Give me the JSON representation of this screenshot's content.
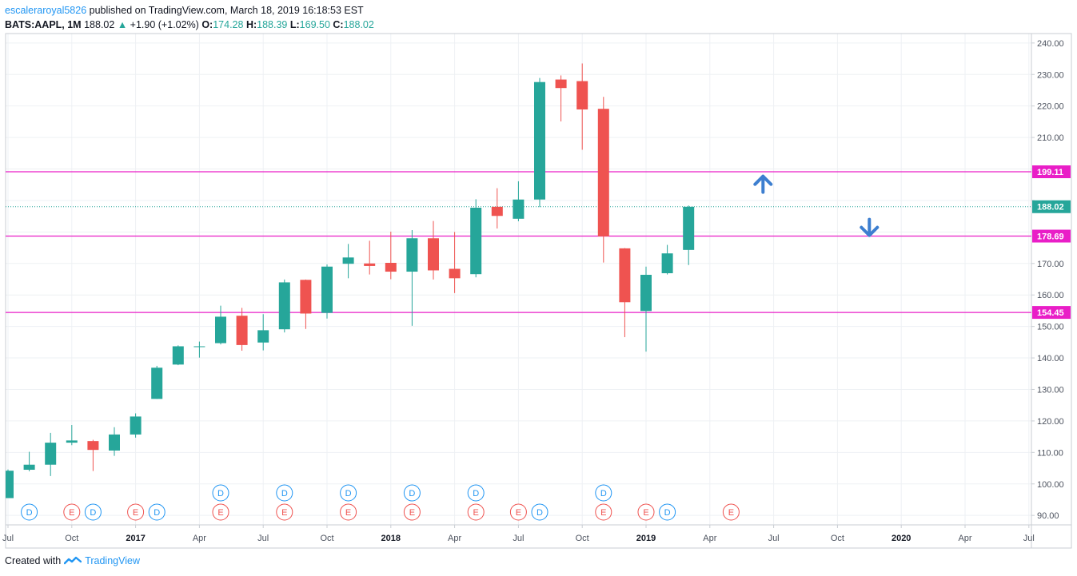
{
  "header": {
    "author": "escaleraroyal5826",
    "published_text": "published on TradingView.com, March 18, 2019 16:18:53 EST",
    "symbol": "BATS:AAPL, 1M",
    "last": "188.02",
    "change_arrow": "▲",
    "change": "+1.90 (+1.02%)",
    "o_label": "O:",
    "o_value": "174.28",
    "h_label": "H:",
    "h_value": "188.39",
    "l_label": "L:",
    "l_value": "169.50",
    "c_label": "C:",
    "c_value": "188.02"
  },
  "footer": {
    "created_with": "Created with",
    "brand": "TradingView",
    "logo_icon": "tradingview-cloud-icon"
  },
  "colors": {
    "up": "#26a69a",
    "down": "#ef5350",
    "level_line": "#e91ec7",
    "last_price": "#26a69a",
    "arrow": "#3d7fd0",
    "dividend": "#2196f3",
    "earnings": "#ef5350",
    "grid": "#eef1f4"
  },
  "chart_data": {
    "type": "candlestick",
    "timeframe": "1M",
    "symbol": "BATS:AAPL",
    "ylim": [
      87,
      243
    ],
    "y_ticks": [
      90,
      100,
      110,
      120,
      130,
      140,
      150,
      160,
      170,
      180,
      190,
      200,
      210,
      220,
      230,
      240
    ],
    "y_tick_labels": [
      "90.00",
      "100.00",
      "110.00",
      "120.00",
      "130.00",
      "140.00",
      "150.00",
      "160.00",
      "170.00",
      "",
      "",
      "",
      "210.00",
      "220.00",
      "230.00",
      "240.00"
    ],
    "x_ticks": [
      {
        "label": "Jul",
        "month_index": 0,
        "bold": false
      },
      {
        "label": "Oct",
        "month_index": 3,
        "bold": false
      },
      {
        "label": "2017",
        "month_index": 6,
        "bold": true
      },
      {
        "label": "Apr",
        "month_index": 9,
        "bold": false
      },
      {
        "label": "Jul",
        "month_index": 12,
        "bold": false
      },
      {
        "label": "Oct",
        "month_index": 15,
        "bold": false
      },
      {
        "label": "2018",
        "month_index": 18,
        "bold": true
      },
      {
        "label": "Apr",
        "month_index": 21,
        "bold": false
      },
      {
        "label": "Jul",
        "month_index": 24,
        "bold": false
      },
      {
        "label": "Oct",
        "month_index": 27,
        "bold": false
      },
      {
        "label": "2019",
        "month_index": 30,
        "bold": true
      },
      {
        "label": "Apr",
        "month_index": 33,
        "bold": false
      },
      {
        "label": "Jul",
        "month_index": 36,
        "bold": false
      },
      {
        "label": "Oct",
        "month_index": 39,
        "bold": false
      },
      {
        "label": "2020",
        "month_index": 42,
        "bold": true
      },
      {
        "label": "Apr",
        "month_index": 45,
        "bold": false
      },
      {
        "label": "Jul",
        "month_index": 48,
        "bold": false
      }
    ],
    "candles": [
      {
        "o": 95.5,
        "h": 104.6,
        "l": 95.5,
        "c": 104.2
      },
      {
        "o": 104.5,
        "h": 110.2,
        "l": 104.0,
        "c": 106.1
      },
      {
        "o": 106.1,
        "h": 116.2,
        "l": 102.5,
        "c": 113.1
      },
      {
        "o": 113.1,
        "h": 118.7,
        "l": 112.3,
        "c": 113.8
      },
      {
        "o": 113.6,
        "h": 114.0,
        "l": 104.1,
        "c": 110.8
      },
      {
        "o": 110.6,
        "h": 118.0,
        "l": 108.9,
        "c": 115.7
      },
      {
        "o": 115.7,
        "h": 122.4,
        "l": 114.7,
        "c": 121.4
      },
      {
        "o": 127.0,
        "h": 137.5,
        "l": 127.0,
        "c": 136.9
      },
      {
        "o": 137.9,
        "h": 144.0,
        "l": 137.7,
        "c": 143.7
      },
      {
        "o": 143.7,
        "h": 145.2,
        "l": 140.1,
        "c": 143.7
      },
      {
        "o": 144.7,
        "h": 156.6,
        "l": 144.3,
        "c": 153.1
      },
      {
        "o": 153.4,
        "h": 155.9,
        "l": 142.3,
        "c": 144.1
      },
      {
        "o": 144.9,
        "h": 153.9,
        "l": 142.4,
        "c": 148.8
      },
      {
        "o": 149.1,
        "h": 164.9,
        "l": 148.1,
        "c": 164.0
      },
      {
        "o": 164.8,
        "h": 164.9,
        "l": 149.2,
        "c": 154.1
      },
      {
        "o": 154.3,
        "h": 169.7,
        "l": 152.5,
        "c": 169.0
      },
      {
        "o": 169.9,
        "h": 176.2,
        "l": 165.3,
        "c": 171.9
      },
      {
        "o": 170.0,
        "h": 177.2,
        "l": 166.5,
        "c": 169.2
      },
      {
        "o": 170.2,
        "h": 180.1,
        "l": 165.0,
        "c": 167.4
      },
      {
        "o": 167.4,
        "h": 180.6,
        "l": 150.2,
        "c": 178.0
      },
      {
        "o": 178.0,
        "h": 183.5,
        "l": 164.9,
        "c": 167.8
      },
      {
        "o": 168.3,
        "h": 180.0,
        "l": 160.6,
        "c": 165.3
      },
      {
        "o": 166.6,
        "h": 190.4,
        "l": 165.6,
        "c": 187.7
      },
      {
        "o": 188.0,
        "h": 193.9,
        "l": 181.1,
        "c": 185.1
      },
      {
        "o": 184.2,
        "h": 196.1,
        "l": 183.4,
        "c": 190.3
      },
      {
        "o": 190.3,
        "h": 228.9,
        "l": 187.9,
        "c": 227.6
      },
      {
        "o": 228.4,
        "h": 229.7,
        "l": 215.1,
        "c": 225.7
      },
      {
        "o": 227.9,
        "h": 233.5,
        "l": 206.1,
        "c": 218.9
      },
      {
        "o": 219.1,
        "h": 222.9,
        "l": 170.3,
        "c": 178.6
      },
      {
        "o": 174.8,
        "h": 174.9,
        "l": 146.6,
        "c": 157.7
      },
      {
        "o": 154.9,
        "h": 169.0,
        "l": 142.0,
        "c": 166.4
      },
      {
        "o": 166.9,
        "h": 175.9,
        "l": 166.5,
        "c": 173.2
      },
      {
        "o": 174.3,
        "h": 188.4,
        "l": 169.5,
        "c": 188.0
      }
    ],
    "horizontal_levels": [
      {
        "value": 199.11,
        "label": "199.11"
      },
      {
        "value": 178.69,
        "label": "178.69"
      },
      {
        "value": 154.45,
        "label": "154.45"
      }
    ],
    "last_price": {
      "value": 188.02,
      "label": "188.02"
    },
    "annotations": [
      {
        "type": "arrow-up",
        "month_index": 35.5,
        "value": 195.4
      },
      {
        "type": "arrow-down",
        "month_index": 40.5,
        "value": 181.2
      }
    ],
    "events": [
      {
        "letter": "D",
        "kind": "dividend",
        "month_index": 1,
        "row": 2
      },
      {
        "letter": "E",
        "kind": "earnings",
        "month_index": 3,
        "row": 2
      },
      {
        "letter": "D",
        "kind": "dividend",
        "month_index": 4,
        "row": 2
      },
      {
        "letter": "E",
        "kind": "earnings",
        "month_index": 6,
        "row": 2
      },
      {
        "letter": "D",
        "kind": "dividend",
        "month_index": 7,
        "row": 2
      },
      {
        "letter": "D",
        "kind": "dividend",
        "month_index": 10,
        "row": 1
      },
      {
        "letter": "E",
        "kind": "earnings",
        "month_index": 10,
        "row": 2
      },
      {
        "letter": "D",
        "kind": "dividend",
        "month_index": 13,
        "row": 1
      },
      {
        "letter": "E",
        "kind": "earnings",
        "month_index": 13,
        "row": 2
      },
      {
        "letter": "D",
        "kind": "dividend",
        "month_index": 16,
        "row": 1
      },
      {
        "letter": "E",
        "kind": "earnings",
        "month_index": 16,
        "row": 2
      },
      {
        "letter": "D",
        "kind": "dividend",
        "month_index": 19,
        "row": 1
      },
      {
        "letter": "E",
        "kind": "earnings",
        "month_index": 19,
        "row": 2
      },
      {
        "letter": "D",
        "kind": "dividend",
        "month_index": 22,
        "row": 1
      },
      {
        "letter": "E",
        "kind": "earnings",
        "month_index": 22,
        "row": 2
      },
      {
        "letter": "E",
        "kind": "earnings",
        "month_index": 24,
        "row": 2
      },
      {
        "letter": "D",
        "kind": "dividend",
        "month_index": 25,
        "row": 2
      },
      {
        "letter": "D",
        "kind": "dividend",
        "month_index": 28,
        "row": 1
      },
      {
        "letter": "E",
        "kind": "earnings",
        "month_index": 28,
        "row": 2
      },
      {
        "letter": "E",
        "kind": "earnings",
        "month_index": 30,
        "row": 2
      },
      {
        "letter": "D",
        "kind": "dividend",
        "month_index": 31,
        "row": 2
      },
      {
        "letter": "E",
        "kind": "earnings",
        "month_index": 34,
        "row": 2
      }
    ],
    "grid": true
  }
}
